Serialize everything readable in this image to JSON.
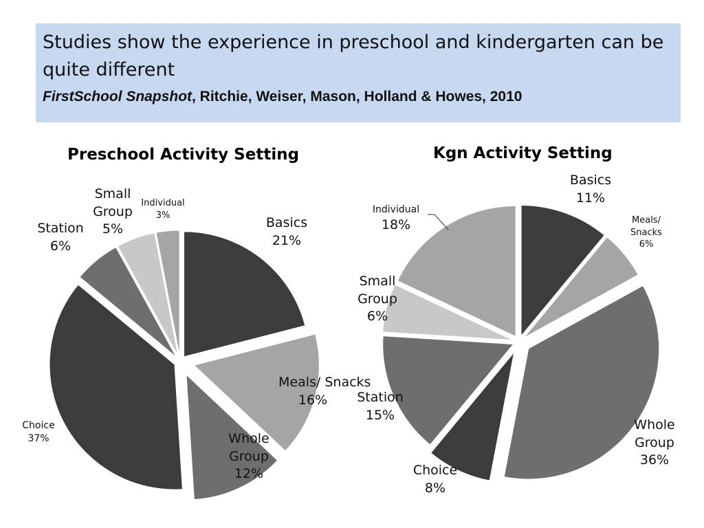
{
  "banner": {
    "title": "Studies show the experience in preschool and kindergarten can be quite different",
    "citation_italic": "FirstSchool Snapshot",
    "citation_rest": ", Ritchie, Weiser, Mason, Holland & Howes, 2010"
  },
  "colors": {
    "banner_bg": "#c6d9f1",
    "slice_dark": "#3c3c3c",
    "slice_mid": "#6e6e6e",
    "slice_light": "#a5a5a5",
    "slice_pale": "#c8c8c8"
  },
  "chart_data": [
    {
      "type": "pie",
      "title": "Preschool Activity Setting",
      "slices": [
        {
          "label": "Basics",
          "value": 21,
          "display": "21%"
        },
        {
          "label": "Meals/ Snacks",
          "value": 16,
          "display": "16%"
        },
        {
          "label": "Whole Group",
          "value": 12,
          "display": "12%"
        },
        {
          "label": "Choice",
          "value": 37,
          "display": "37%"
        },
        {
          "label": "Station",
          "value": 6,
          "display": "6%"
        },
        {
          "label": "Small Group",
          "value": 5,
          "display": "5%"
        },
        {
          "label": "Individual",
          "value": 3,
          "display": "3%"
        }
      ]
    },
    {
      "type": "pie",
      "title": "Kgn Activity Setting",
      "slices": [
        {
          "label": "Basics",
          "value": 11,
          "display": "11%"
        },
        {
          "label": "Meals/ Snacks",
          "value": 6,
          "display": "6%"
        },
        {
          "label": "Whole Group",
          "value": 36,
          "display": "36%"
        },
        {
          "label": "Choice",
          "value": 8,
          "display": "8%"
        },
        {
          "label": "Station",
          "value": 15,
          "display": "15%"
        },
        {
          "label": "Small Group",
          "value": 6,
          "display": "6%"
        },
        {
          "label": "Individual",
          "value": 18,
          "display": "18%"
        }
      ]
    }
  ]
}
